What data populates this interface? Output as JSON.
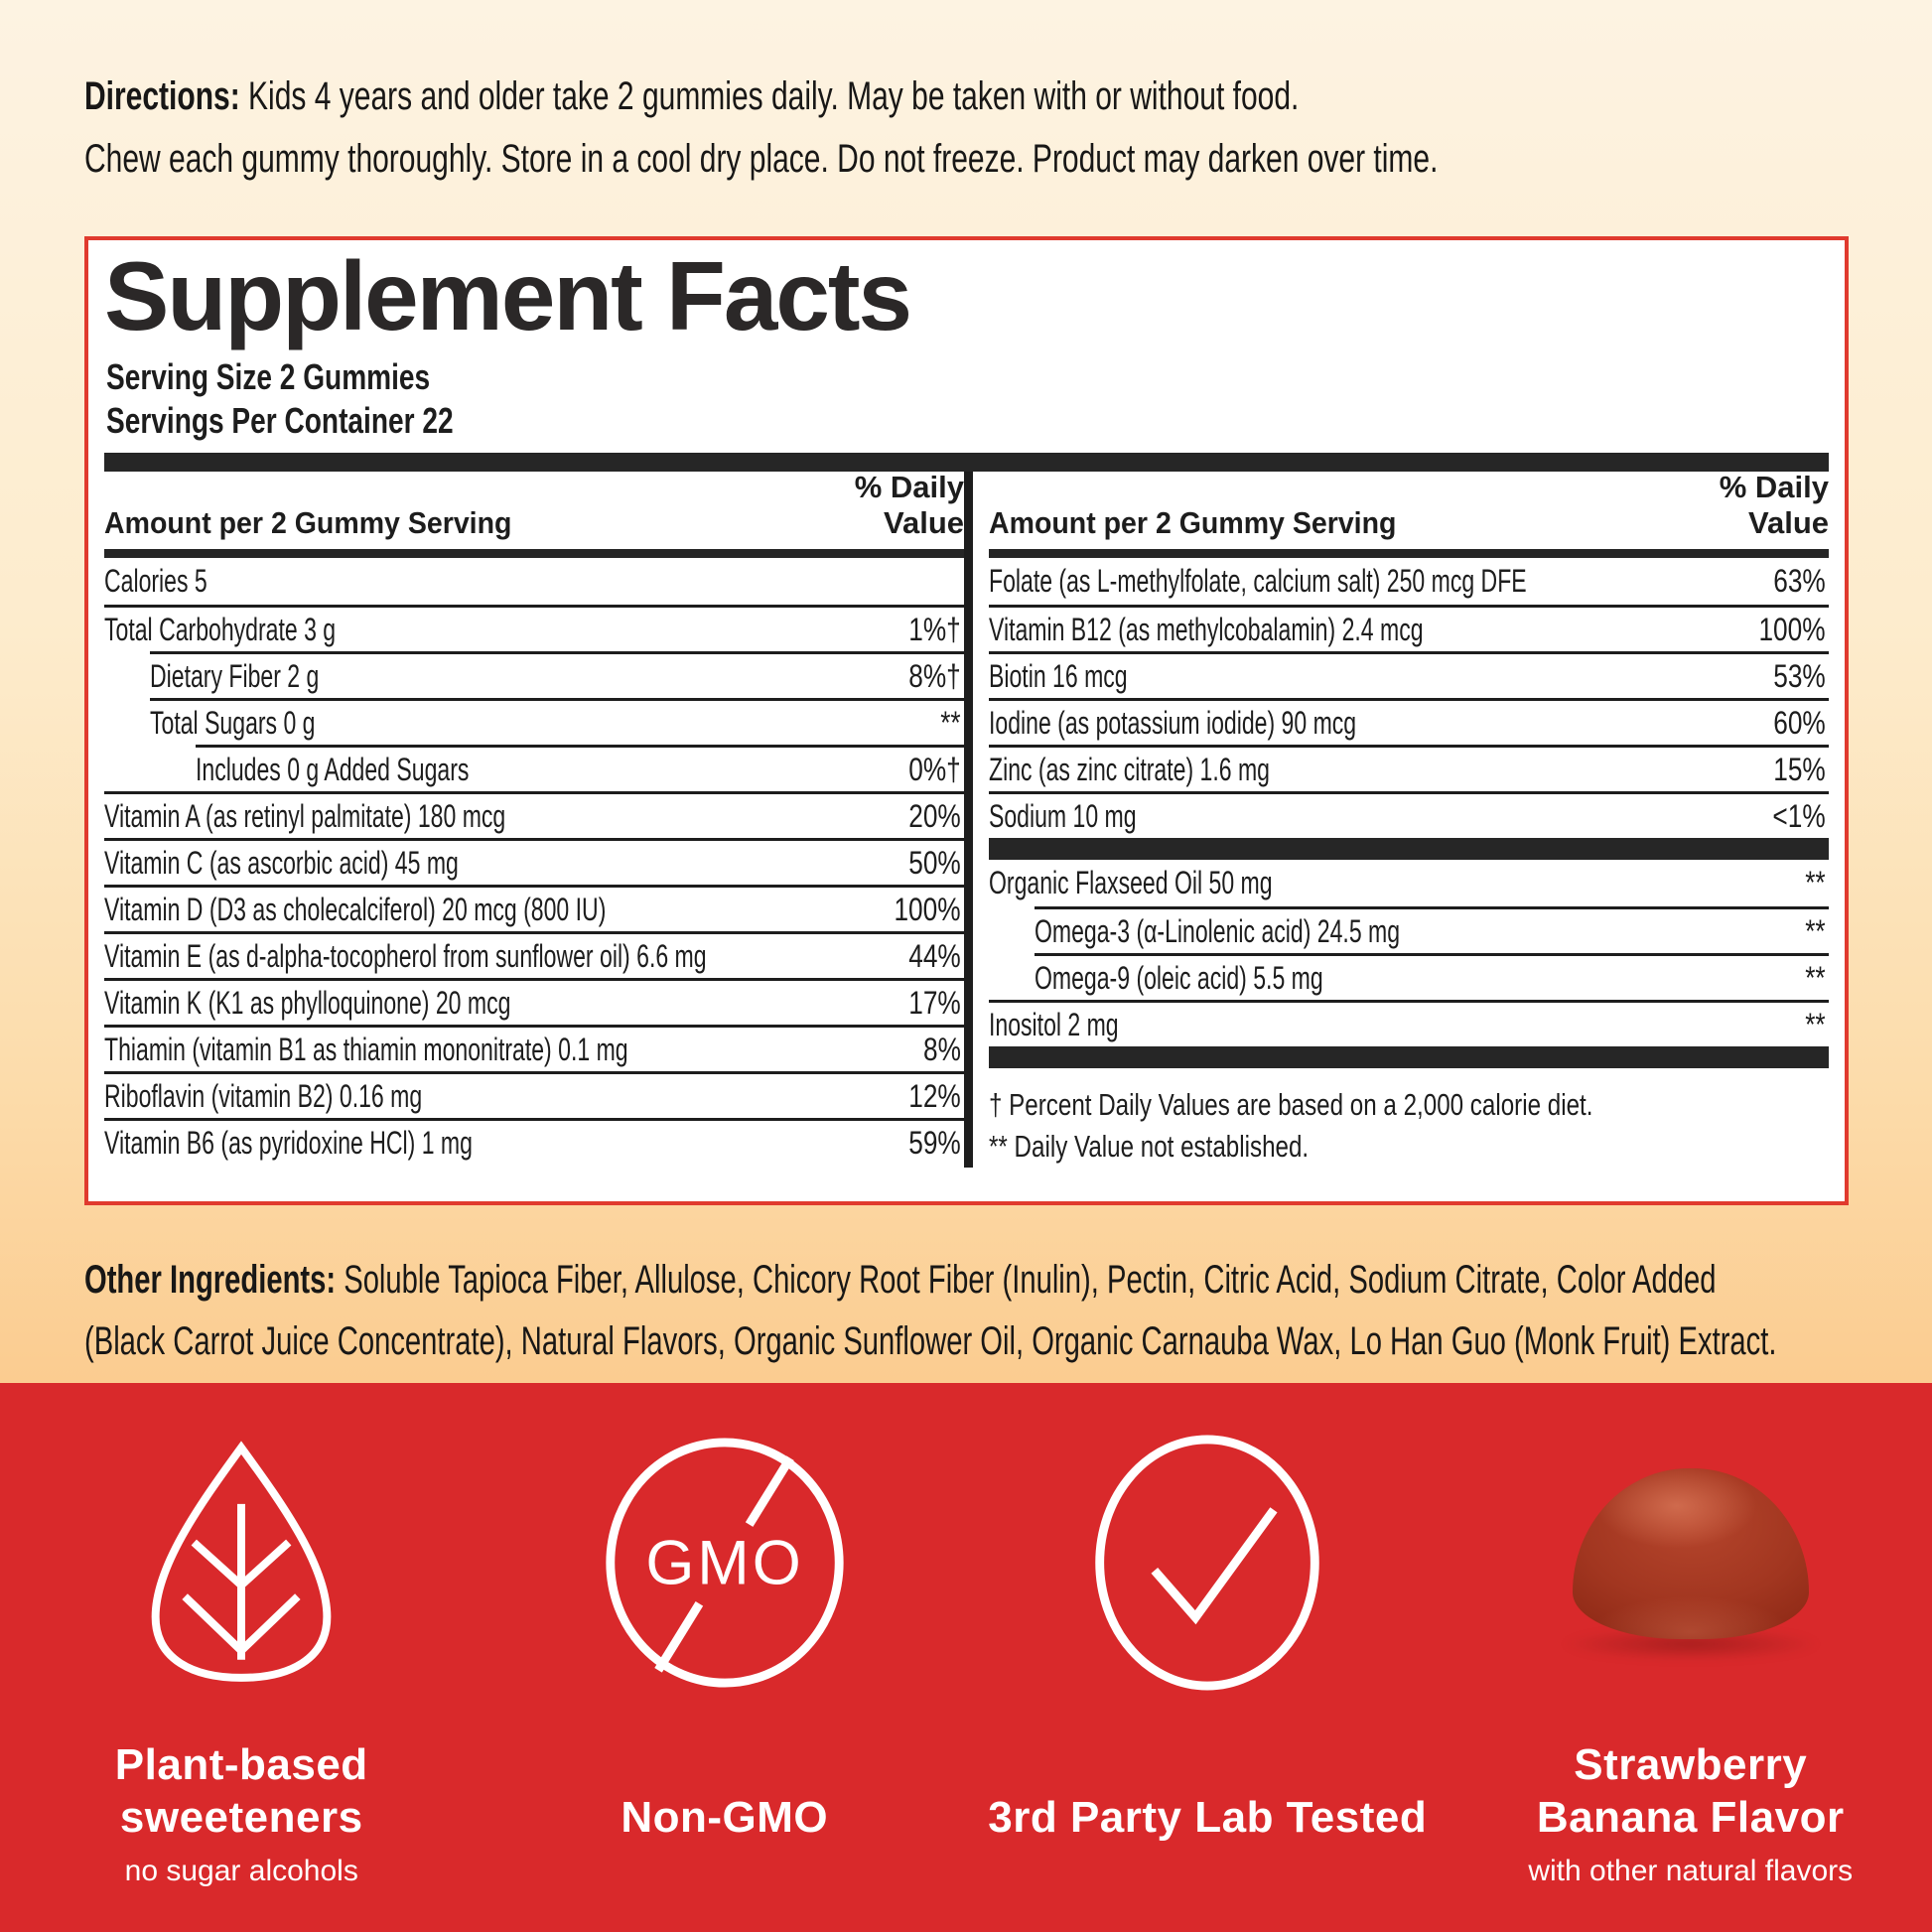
{
  "directions": {
    "label": "Directions:",
    "line1": "Kids 4 years and older take 2 gummies daily. May be taken with or without food.",
    "line2": "Chew each gummy thoroughly. Store in a cool dry place. Do not freeze. Product may darken over time."
  },
  "supplement_facts": {
    "title": "Supplement Facts",
    "serving_size": "Serving Size 2 Gummies",
    "servings_per_container": "Servings Per Container 22",
    "amount_header": "Amount per 2 Gummy Serving",
    "daily_value_header": "% Daily Value",
    "left_rows": [
      {
        "name": "Calories 5",
        "value": "",
        "indent": 0
      },
      {
        "name": "Total Carbohydrate 3 g",
        "value": "1%†",
        "indent": 0
      },
      {
        "name": "Dietary Fiber 2 g",
        "value": "8%†",
        "indent": 1
      },
      {
        "name": "Total Sugars 0 g",
        "value": "**",
        "indent": 1
      },
      {
        "name": "Includes 0 g Added Sugars",
        "value": "0%†",
        "indent": 2
      },
      {
        "name": "Vitamin A (as retinyl palmitate) 180 mcg",
        "value": "20%",
        "indent": 0
      },
      {
        "name": "Vitamin C (as ascorbic acid) 45 mg",
        "value": "50%",
        "indent": 0
      },
      {
        "name": "Vitamin D (D3 as cholecalciferol) 20 mcg (800 IU)",
        "value": "100%",
        "indent": 0
      },
      {
        "name": "Vitamin E (as d-alpha-tocopherol from sunflower oil) 6.6 mg",
        "value": "44%",
        "indent": 0
      },
      {
        "name": "Vitamin K (K1 as phylloquinone) 20 mcg",
        "value": "17%",
        "indent": 0
      },
      {
        "name": "Thiamin (vitamin B1 as thiamin mononitrate) 0.1 mg",
        "value": "8%",
        "indent": 0
      },
      {
        "name": "Riboflavin (vitamin B2) 0.16 mg",
        "value": "12%",
        "indent": 0
      },
      {
        "name": "Vitamin B6 (as pyridoxine HCl) 1 mg",
        "value": "59%",
        "indent": 0
      }
    ],
    "right_rows": [
      {
        "name": "Folate (as L-methylfolate, calcium salt) 250 mcg DFE",
        "value": "63%",
        "indent": 0
      },
      {
        "name": "Vitamin B12 (as methylcobalamin) 2.4 mcg",
        "value": "100%",
        "indent": 0
      },
      {
        "name": "Biotin 16 mcg",
        "value": "53%",
        "indent": 0
      },
      {
        "name": "Iodine (as potassium iodide) 90 mcg",
        "value": "60%",
        "indent": 0
      },
      {
        "name": "Zinc (as zinc citrate) 1.6 mg",
        "value": "15%",
        "indent": 0
      },
      {
        "name": "Sodium 10 mg",
        "value": "<1%",
        "indent": 0
      },
      {
        "type": "bar"
      },
      {
        "name": "Organic Flaxseed Oil 50 mg",
        "value": "**",
        "indent": 0
      },
      {
        "name": "Omega-3 (α-Linolenic acid) 24.5 mg",
        "value": "**",
        "indent": 1
      },
      {
        "name": "Omega-9 (oleic acid) 5.5 mg",
        "value": "**",
        "indent": 1
      },
      {
        "name": "Inositol 2 mg",
        "value": "**",
        "indent": 0
      },
      {
        "type": "bar"
      }
    ],
    "footnote_dagger": "† Percent Daily Values are based on a 2,000 calorie diet.",
    "footnote_asterisk": "** Daily Value not established."
  },
  "other_ingredients": {
    "label": "Other Ingredients:",
    "line1": "Soluble Tapioca Fiber, Allulose, Chicory Root Fiber (Inulin), Pectin, Citric Acid, Sodium Citrate, Color Added",
    "line2": "(Black Carrot Juice Concentrate), Natural Flavors, Organic Sunflower Oil, Organic Carnauba Wax, Lo Han Guo (Monk Fruit) Extract."
  },
  "badges": [
    {
      "icon": "leaf-icon",
      "label": "Plant-based\nsweeteners",
      "sublabel": "no sugar alcohols"
    },
    {
      "icon": "gmo-crossed-icon",
      "icon_text": "GMO",
      "label": "Non-GMO",
      "sublabel": ""
    },
    {
      "icon": "checkmark-circle-icon",
      "label": "3rd Party Lab Tested",
      "sublabel": ""
    },
    {
      "icon": "gummy-image",
      "label": "Strawberry\nBanana Flavor",
      "sublabel": "with other natural flavors"
    }
  ],
  "colors": {
    "band-red": "#d9292b",
    "panel-border-red": "#e03a2e",
    "bg-top": "#fdf3e2",
    "bg-bottom": "#fbcc90",
    "ink": "#1d1d1d"
  }
}
